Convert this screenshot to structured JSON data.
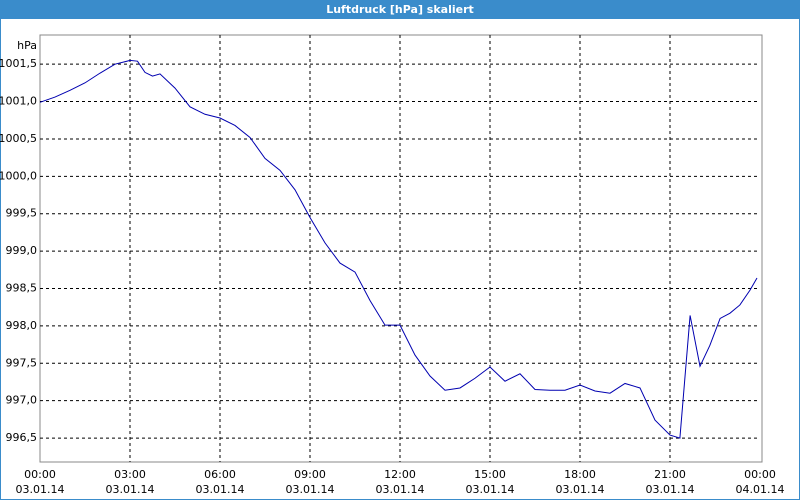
{
  "chart_data": {
    "type": "line",
    "title": "Luftdruck [hPa] skaliert",
    "y_label": "hPa",
    "x": [
      0,
      0.5,
      1,
      1.5,
      2,
      2.5,
      3,
      3.25,
      3.5,
      3.75,
      4,
      4.5,
      5,
      5.5,
      6,
      6.5,
      7,
      7.5,
      8,
      8.5,
      9,
      9.5,
      10,
      10.5,
      11,
      11.5,
      12,
      12.5,
      13,
      13.5,
      14,
      14.5,
      15,
      15.5,
      16,
      16.5,
      17,
      17.5,
      18,
      18.5,
      19,
      19.5,
      20,
      20.5,
      21,
      21.33,
      21.67,
      22,
      22.33,
      22.67,
      23,
      23.33,
      23.67,
      23.9
    ],
    "series": [
      {
        "name": "Luftdruck",
        "color": "#0000b0",
        "values": [
          1000.99,
          1001.06,
          1001.15,
          1001.25,
          1001.38,
          1001.5,
          1001.55,
          1001.54,
          1001.39,
          1001.34,
          1001.37,
          1001.18,
          1000.93,
          1000.83,
          1000.78,
          1000.68,
          1000.52,
          1000.24,
          1000.08,
          999.82,
          999.45,
          999.11,
          998.84,
          998.72,
          998.34,
          998.01,
          998.01,
          997.61,
          997.33,
          997.14,
          997.17,
          997.3,
          997.45,
          997.26,
          997.36,
          997.15,
          997.14,
          997.14,
          997.21,
          997.13,
          997.1,
          997.23,
          997.17,
          996.74,
          996.54,
          996.5,
          998.14,
          997.46,
          997.74,
          998.1,
          998.17,
          998.28,
          998.48,
          998.64
        ]
      }
    ],
    "xlim": [
      0,
      24
    ],
    "ylim": [
      996.18,
      1001.89
    ],
    "xticks": [
      {
        "value": 0,
        "label": "00:00",
        "date": "03.01.14"
      },
      {
        "value": 3,
        "label": "03:00",
        "date": "03.01.14"
      },
      {
        "value": 6,
        "label": "06:00",
        "date": "03.01.14"
      },
      {
        "value": 9,
        "label": "09:00",
        "date": "03.01.14"
      },
      {
        "value": 12,
        "label": "12:00",
        "date": "03.01.14"
      },
      {
        "value": 15,
        "label": "15:00",
        "date": "03.01.14"
      },
      {
        "value": 18,
        "label": "18:00",
        "date": "03.01.14"
      },
      {
        "value": 21,
        "label": "21:00",
        "date": "03.01.14"
      },
      {
        "value": 24,
        "label": "00:00",
        "date": "04.01.14"
      }
    ],
    "yticks": [
      {
        "value": 996.5,
        "label": "996,5"
      },
      {
        "value": 997,
        "label": "997,0"
      },
      {
        "value": 997.5,
        "label": "997,5"
      },
      {
        "value": 998,
        "label": "998,0"
      },
      {
        "value": 998.5,
        "label": "998,5"
      },
      {
        "value": 999,
        "label": "999,0"
      },
      {
        "value": 999.5,
        "label": "999,5"
      },
      {
        "value": 1000,
        "label": "1000,0"
      },
      {
        "value": 1000.5,
        "label": "1000,5"
      },
      {
        "value": 1001,
        "label": "1001,0"
      },
      {
        "value": 1001.5,
        "label": "1001,5"
      }
    ],
    "grid": true
  }
}
